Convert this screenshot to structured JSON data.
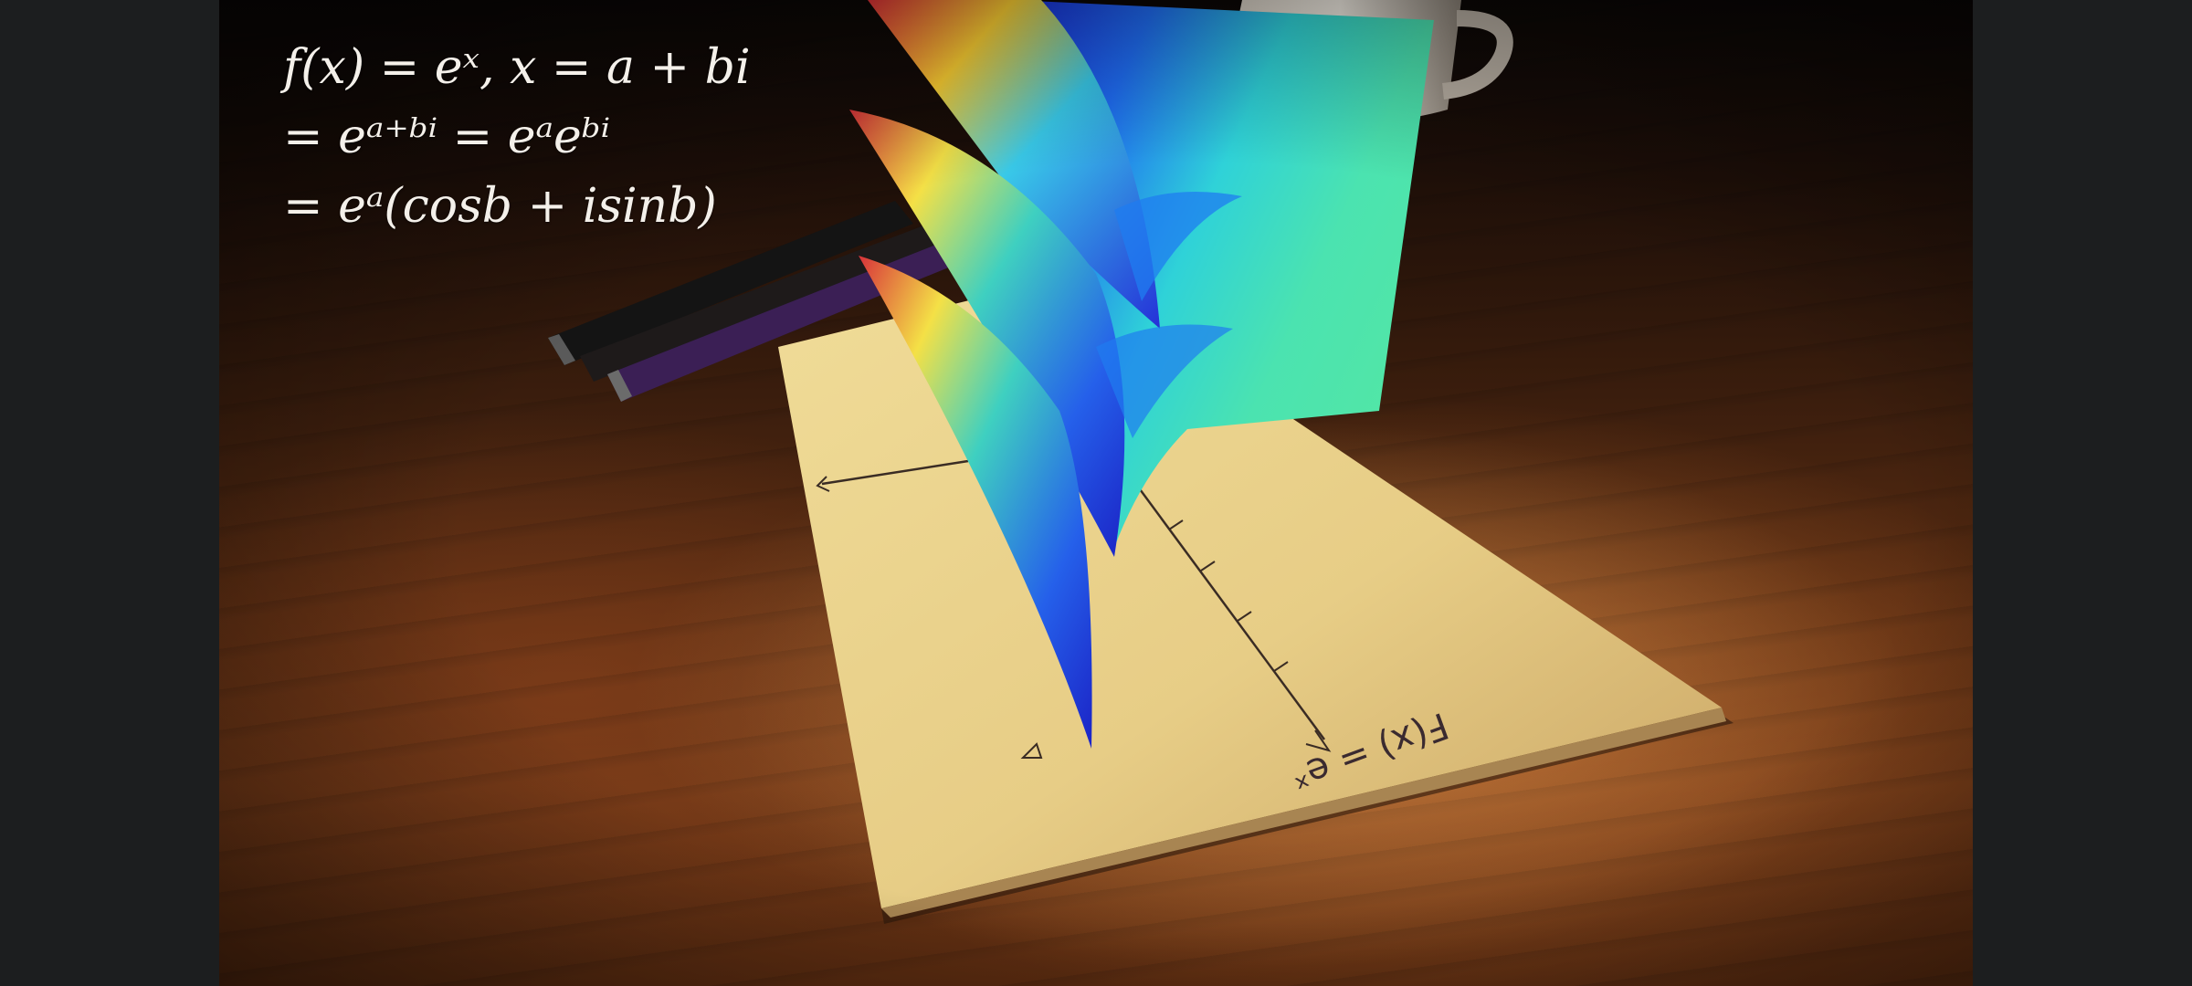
{
  "equations": {
    "line1": "f(x) = eˣ, x = a + bi",
    "line2": "= eᵃ⁺ᵇⁱ = eᵃeᵇⁱ",
    "line3": "= eᵃ(cosb + isinb)"
  },
  "paper": {
    "handwriting": "F(x) = eˣ"
  },
  "colors": {
    "surface_gradient": [
      "#2a1fd0",
      "#1e6cf0",
      "#23c8e8",
      "#49e0a8",
      "#c8e34a",
      "#ffe033",
      "#f06a2a",
      "#d8323a"
    ],
    "paper": "#e8cf87",
    "desk": "#4a2410",
    "letterbox": "#1c1e1f"
  }
}
